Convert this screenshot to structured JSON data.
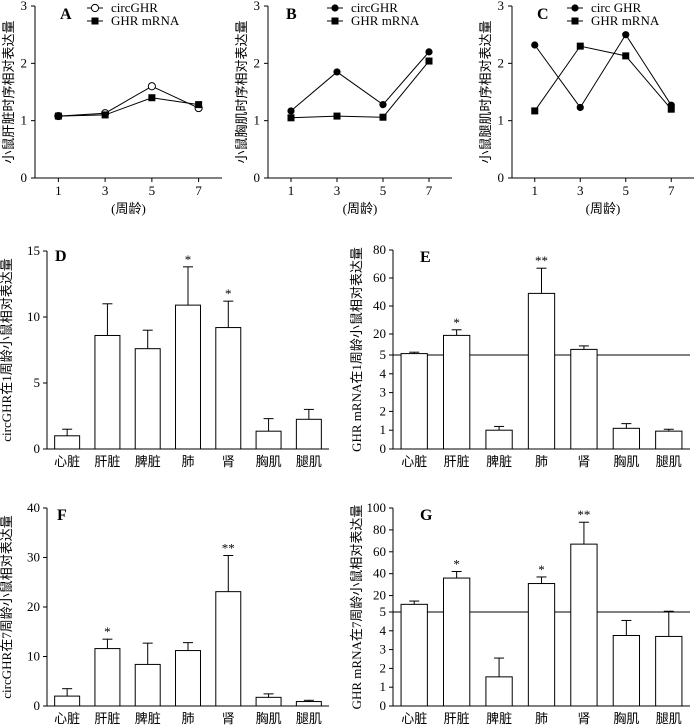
{
  "chart_data": [
    {
      "panel": "A",
      "type": "line",
      "x": [
        1,
        3,
        5,
        7
      ],
      "xlabel": "(周龄)",
      "ylabel": "小鼠肝脏时序相对表达量",
      "ylim": [
        0,
        3
      ],
      "yticks": [
        0,
        1,
        2,
        3
      ],
      "series": [
        {
          "name": "circGHR",
          "marker": "open-circle",
          "values": [
            1.08,
            1.13,
            1.6,
            1.22
          ]
        },
        {
          "name": "GHR mRNA",
          "marker": "filled-square",
          "values": [
            1.08,
            1.1,
            1.4,
            1.28
          ]
        }
      ]
    },
    {
      "panel": "B",
      "type": "line",
      "x": [
        1,
        3,
        5,
        7
      ],
      "xlabel": "(周龄)",
      "ylabel": "小鼠胸肌时序相对表达量",
      "ylim": [
        0,
        3
      ],
      "yticks": [
        0,
        1,
        2,
        3
      ],
      "series": [
        {
          "name": "circGHR",
          "marker": "filled-circle",
          "values": [
            1.17,
            1.85,
            1.28,
            2.2
          ]
        },
        {
          "name": "GHR mRNA",
          "marker": "filled-square",
          "values": [
            1.05,
            1.08,
            1.06,
            2.04
          ]
        }
      ]
    },
    {
      "panel": "C",
      "type": "line",
      "x": [
        1,
        3,
        5,
        7
      ],
      "xlabel": "(周龄)",
      "ylabel": "小鼠腿肌时序相对表达量",
      "ylim": [
        0,
        3
      ],
      "yticks": [
        0,
        1,
        2,
        3
      ],
      "series": [
        {
          "name": "circ GHR",
          "marker": "filled-circle",
          "values": [
            2.32,
            1.23,
            2.5,
            1.27
          ]
        },
        {
          "name": "GHR mRNA",
          "marker": "filled-square",
          "values": [
            1.17,
            2.3,
            2.13,
            1.2
          ]
        }
      ]
    },
    {
      "panel": "D",
      "type": "bar",
      "categories": [
        "心脏",
        "肝脏",
        "脾脏",
        "肺",
        "肾",
        "胸肌",
        "腿肌"
      ],
      "ylabel": "circGHR在1周龄小鼠相对表达量",
      "ylim": [
        0,
        15
      ],
      "yticks": [
        0,
        5,
        10,
        15
      ],
      "values": [
        1.0,
        8.6,
        7.6,
        10.9,
        9.2,
        1.35,
        2.25
      ],
      "errors": [
        0.5,
        2.4,
        1.4,
        2.9,
        2.0,
        0.95,
        0.75
      ],
      "significance": [
        "",
        "",
        "",
        "*",
        "*",
        "",
        ""
      ]
    },
    {
      "panel": "E",
      "type": "bar",
      "broken_axis": true,
      "categories": [
        "心脏",
        "肝脏",
        "脾脏",
        "肺",
        "肾",
        "胸肌",
        "腿肌"
      ],
      "ylabel": "GHR mRNA在1周龄小鼠相对表达量",
      "ylim_lower": [
        0,
        5
      ],
      "yticks_lower": [
        0,
        1,
        2,
        3,
        4,
        5
      ],
      "ylim_upper": [
        5,
        80
      ],
      "yticks_upper": [
        20,
        40,
        60,
        80
      ],
      "values": [
        6,
        19,
        1.0,
        49,
        9,
        1.1,
        0.95
      ],
      "errors": [
        1,
        4,
        0.2,
        18,
        2.5,
        0.25,
        0.1
      ],
      "significance": [
        "",
        "*",
        "",
        "**",
        "",
        "",
        ""
      ]
    },
    {
      "panel": "F",
      "type": "bar",
      "categories": [
        "心脏",
        "肝脏",
        "脾脏",
        "肺",
        "肾",
        "胸肌",
        "腿肌"
      ],
      "ylabel": "circGHR在7周龄小鼠相对表达量",
      "ylim": [
        0,
        40
      ],
      "yticks": [
        0,
        10,
        20,
        30,
        40
      ],
      "values": [
        2.0,
        11.6,
        8.4,
        11.2,
        23.1,
        1.75,
        0.9
      ],
      "errors": [
        1.5,
        1.9,
        4.3,
        1.6,
        7.3,
        0.7,
        0.25
      ],
      "significance": [
        "",
        "*",
        "",
        "",
        "**",
        "",
        ""
      ]
    },
    {
      "panel": "G",
      "type": "bar",
      "broken_axis": true,
      "categories": [
        "心脏",
        "肝脏",
        "脾脏",
        "肺",
        "肾",
        "胸肌",
        "腿肌"
      ],
      "ylabel": "GHR mRNA在7周龄小鼠相对表达量",
      "ylim_lower": [
        0,
        5
      ],
      "yticks_lower": [
        0,
        1,
        2,
        3,
        4,
        5
      ],
      "ylim_upper": [
        5,
        100
      ],
      "yticks_upper": [
        20,
        40,
        60,
        80,
        100
      ],
      "values": [
        12,
        36,
        1.55,
        31,
        67,
        3.75,
        3.7
      ],
      "errors": [
        3,
        6,
        1.0,
        6,
        20,
        0.8,
        2.0
      ],
      "significance": [
        "",
        "*",
        "",
        "*",
        "**",
        "",
        ""
      ]
    }
  ]
}
